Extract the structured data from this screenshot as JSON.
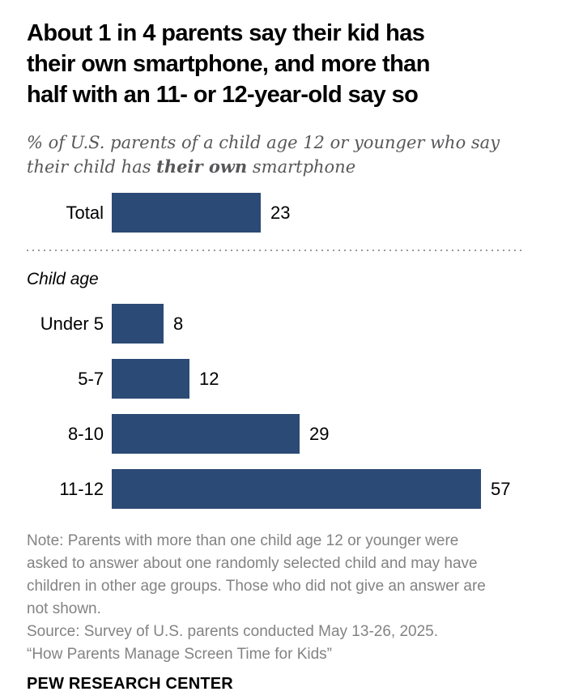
{
  "header": {
    "title_lines": [
      "About 1 in 4 parents say their kid has",
      "their own smartphone, and more than",
      "half with an 11- or 12-year-old say so"
    ],
    "subtitle": {
      "line1": "% of U.S. parents of a child age 12 or younger who say",
      "line2_prefix": "their child has ",
      "line2_bold": "their own",
      "line2_suffix": " smartphone"
    }
  },
  "chart_data": {
    "type": "bar",
    "orientation": "horizontal",
    "title": "About 1 in 4 parents say their kid has their own smartphone, and more than half with an 11- or 12-year-old say so",
    "subtitle": "% of U.S. parents of a child age 12 or younger who say their child has their own smartphone",
    "categories": [
      "Total",
      "Under 5",
      "5-7",
      "8-10",
      "11-12"
    ],
    "values": [
      23,
      8,
      12,
      29,
      57
    ],
    "section_label": "Child age",
    "unit": "%",
    "xlim": [
      0,
      60
    ],
    "bar_color": "#2b4a75",
    "grid": false,
    "value_labels": true,
    "legend": false
  },
  "footer": {
    "note_lines": [
      "Note: Parents with more than one child age 12 or younger were",
      "asked to answer about one randomly selected child and may have",
      "children in other age groups. Those who did not give an answer are",
      "not shown."
    ],
    "source_line": "Source: Survey of U.S. parents conducted May 13-26, 2025.",
    "report_line": "“How Parents Manage Screen Time for Kids”",
    "brand": "PEW RESEARCH CENTER"
  }
}
